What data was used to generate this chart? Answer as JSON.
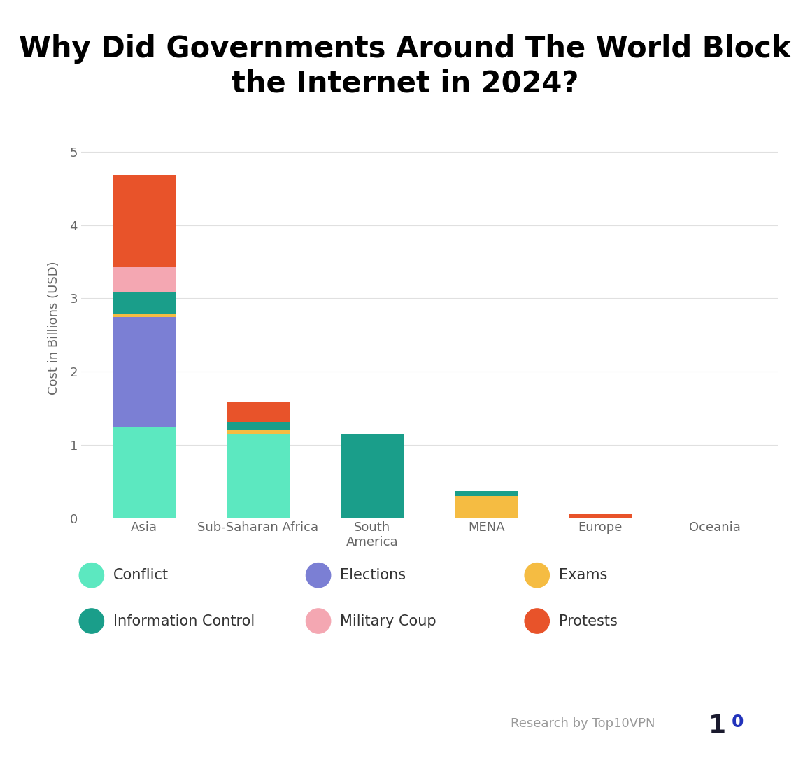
{
  "categories": [
    "Asia",
    "Sub-Saharan Africa",
    "South\nAmerica",
    "MENA",
    "Europe",
    "Oceania"
  ],
  "series": {
    "Conflict": [
      1.25,
      1.15,
      0.0,
      0.0,
      0.0,
      0.0
    ],
    "Elections": [
      1.5,
      0.0,
      0.0,
      0.0,
      0.0,
      0.0
    ],
    "Exams": [
      0.03,
      0.06,
      0.0,
      0.3,
      0.0,
      0.0
    ],
    "Information Control": [
      0.3,
      0.1,
      1.15,
      0.07,
      0.0,
      0.0
    ],
    "Military Coup": [
      0.35,
      0.0,
      0.0,
      0.0,
      0.0,
      0.0
    ],
    "Protests": [
      1.25,
      0.27,
      0.0,
      0.0,
      0.05,
      0.0
    ]
  },
  "colors": {
    "Conflict": "#5CE8C0",
    "Elections": "#7B7FD4",
    "Exams": "#F5BC42",
    "Information Control": "#1A9E8A",
    "Military Coup": "#F4A7B2",
    "Protests": "#E8532A"
  },
  "title_line1": "Why Did Governments Around The World Block",
  "title_line2": "the Internet in 2024?",
  "ylabel": "Cost in Billions (USD)",
  "ylim": [
    0,
    5.2
  ],
  "yticks": [
    0,
    1,
    2,
    3,
    4,
    5
  ],
  "background_color": "#FFFFFF",
  "legend_row1": [
    "Conflict",
    "Elections",
    "Exams"
  ],
  "legend_row2": [
    "Information Control",
    "Military Coup",
    "Protests"
  ],
  "watermark": "Research by Top10VPN",
  "title_fontsize": 30,
  "label_fontsize": 13,
  "tick_fontsize": 13,
  "legend_fontsize": 15
}
